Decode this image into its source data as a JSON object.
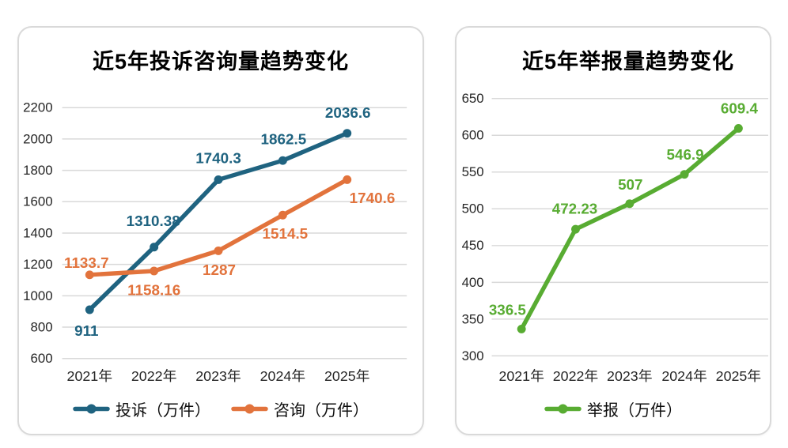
{
  "colors": {
    "background": "#ffffff",
    "card_border": "#d9d9d9",
    "grid": "#d9d9d9",
    "tick_text": "#262626",
    "legend_text": "#0d0d0d",
    "title_text": "#000000",
    "complaint_blue": "#1f6380",
    "consult_orange": "#e2733c",
    "report_green": "#58ac32"
  },
  "chart_data": [
    {
      "type": "line",
      "title": "近5年投诉咨询量趋势变化",
      "xlabel": "",
      "ylabel": "",
      "categories": [
        "2021年",
        "2022年",
        "2023年",
        "2024年",
        "2025年"
      ],
      "series": [
        {
          "name": "投诉（万件）",
          "color": "#1f6380",
          "values": [
            911,
            1310.38,
            1740.3,
            1862.5,
            2036.6
          ]
        },
        {
          "name": "咨询（万件）",
          "color": "#e2733c",
          "values": [
            1133.7,
            1158.16,
            1287,
            1514.5,
            1740.6
          ]
        }
      ],
      "ylim": [
        600,
        2200
      ],
      "ytick_step": 200,
      "yticks": [
        600,
        800,
        1000,
        1200,
        1400,
        1600,
        1800,
        2000,
        2200
      ],
      "grid": true,
      "legend_position": "bottom",
      "data_labels": true
    },
    {
      "type": "line",
      "title": "近5年举报量趋势变化",
      "xlabel": "",
      "ylabel": "",
      "categories": [
        "2021年",
        "2022年",
        "2023年",
        "2024年",
        "2025年"
      ],
      "series": [
        {
          "name": "举报（万件）",
          "color": "#58ac32",
          "values": [
            336.5,
            472.23,
            507,
            546.9,
            609.4
          ]
        }
      ],
      "ylim": [
        300,
        650
      ],
      "ytick_step": 50,
      "yticks": [
        300,
        350,
        400,
        450,
        500,
        550,
        600,
        650
      ],
      "grid": true,
      "legend_position": "bottom",
      "data_labels": true
    }
  ]
}
